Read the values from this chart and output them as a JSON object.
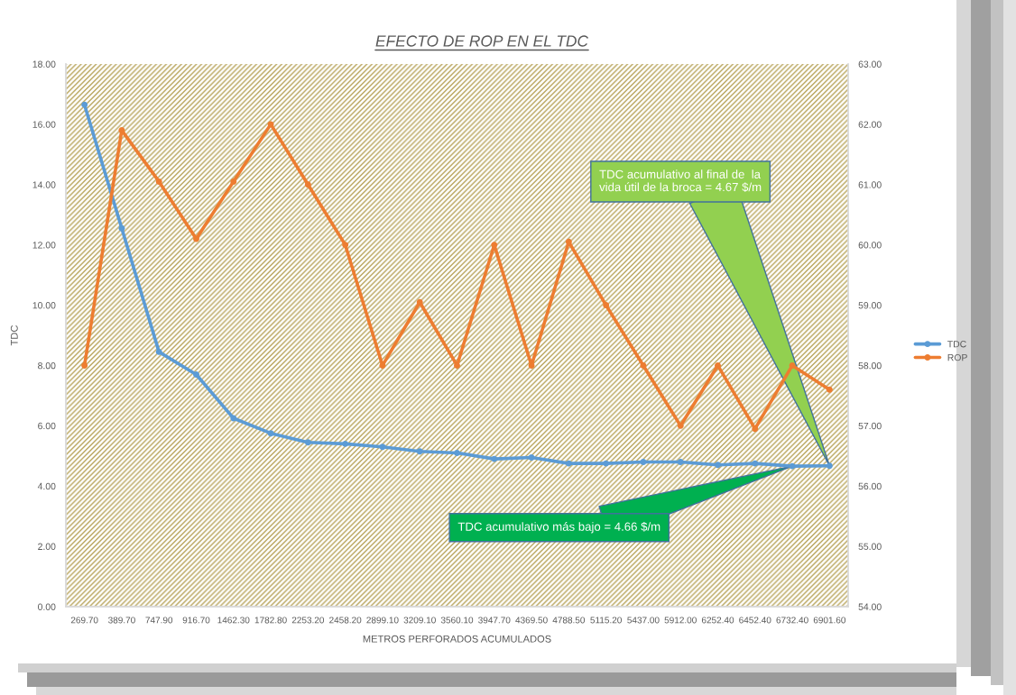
{
  "chart_data": {
    "type": "line",
    "title": "EFECTO DE ROP EN EL TDC",
    "xlabel": "METROS PERFORADOS ACUMULADOS",
    "ylabel": "TDC",
    "categories": [
      "269.70",
      "389.70",
      "747.90",
      "916.70",
      "1462.30",
      "1782.80",
      "2253.20",
      "2458.20",
      "2899.10",
      "3209.10",
      "3560.10",
      "3947.70",
      "4369.50",
      "4788.50",
      "5115.20",
      "5437.00",
      "5912.00",
      "6252.40",
      "6452.40",
      "6732.40",
      "6901.60"
    ],
    "series": [
      {
        "name": "TDC",
        "color": "#5b9bd5",
        "values": [
          16.65,
          12.55,
          8.45,
          7.7,
          6.25,
          5.75,
          5.45,
          5.4,
          5.3,
          5.15,
          5.1,
          4.9,
          4.95,
          4.75,
          4.75,
          4.8,
          4.8,
          4.7,
          4.75,
          4.66,
          4.67
        ]
      },
      {
        "name": "ROP",
        "color": "#ed7d31",
        "axis": "y2",
        "values": [
          58.0,
          61.9,
          61.05,
          60.1,
          61.05,
          62.0,
          61.0,
          60.0,
          58.0,
          59.05,
          58.0,
          60.0,
          58.0,
          60.05,
          59.0,
          58.0,
          57.0,
          58.0,
          56.95,
          58.0,
          57.6
        ]
      }
    ],
    "ylim": [
      0,
      18
    ],
    "yticks": [
      {
        "value": 0,
        "label": "0.00"
      },
      {
        "value": 2,
        "label": "2.00"
      },
      {
        "value": 4,
        "label": "4.00"
      },
      {
        "value": 6,
        "label": "6.00"
      },
      {
        "value": 8,
        "label": "8.00"
      },
      {
        "value": 10,
        "label": "10.00"
      },
      {
        "value": 12,
        "label": "12.00"
      },
      {
        "value": 14,
        "label": "14.00"
      },
      {
        "value": 16,
        "label": "16.00"
      },
      {
        "value": 18,
        "label": "18.00"
      }
    ],
    "y2lim": [
      54,
      63
    ],
    "y2ticks": [
      {
        "value": 54,
        "label": "54.00"
      },
      {
        "value": 55,
        "label": "55.00"
      },
      {
        "value": 56,
        "label": "56.00"
      },
      {
        "value": 57,
        "label": "57.00"
      },
      {
        "value": 58,
        "label": "58.00"
      },
      {
        "value": 59,
        "label": "59.00"
      },
      {
        "value": 60,
        "label": "60.00"
      },
      {
        "value": 61,
        "label": "61.00"
      },
      {
        "value": 62,
        "label": "62.00"
      },
      {
        "value": 63,
        "label": "63.00"
      }
    ],
    "annotations": [
      {
        "text": "TDC acumulativo al final de  la\nvida útil de la broca = 4.67 $/m",
        "x": "6901.60",
        "y": 4.67
      },
      {
        "text": "TDC acumulativo más bajo = 4.66 $/m",
        "x": "6732.40",
        "y": 4.66
      }
    ],
    "legend": "right",
    "marker": "circle",
    "line_style": "solid",
    "grid": false
  }
}
